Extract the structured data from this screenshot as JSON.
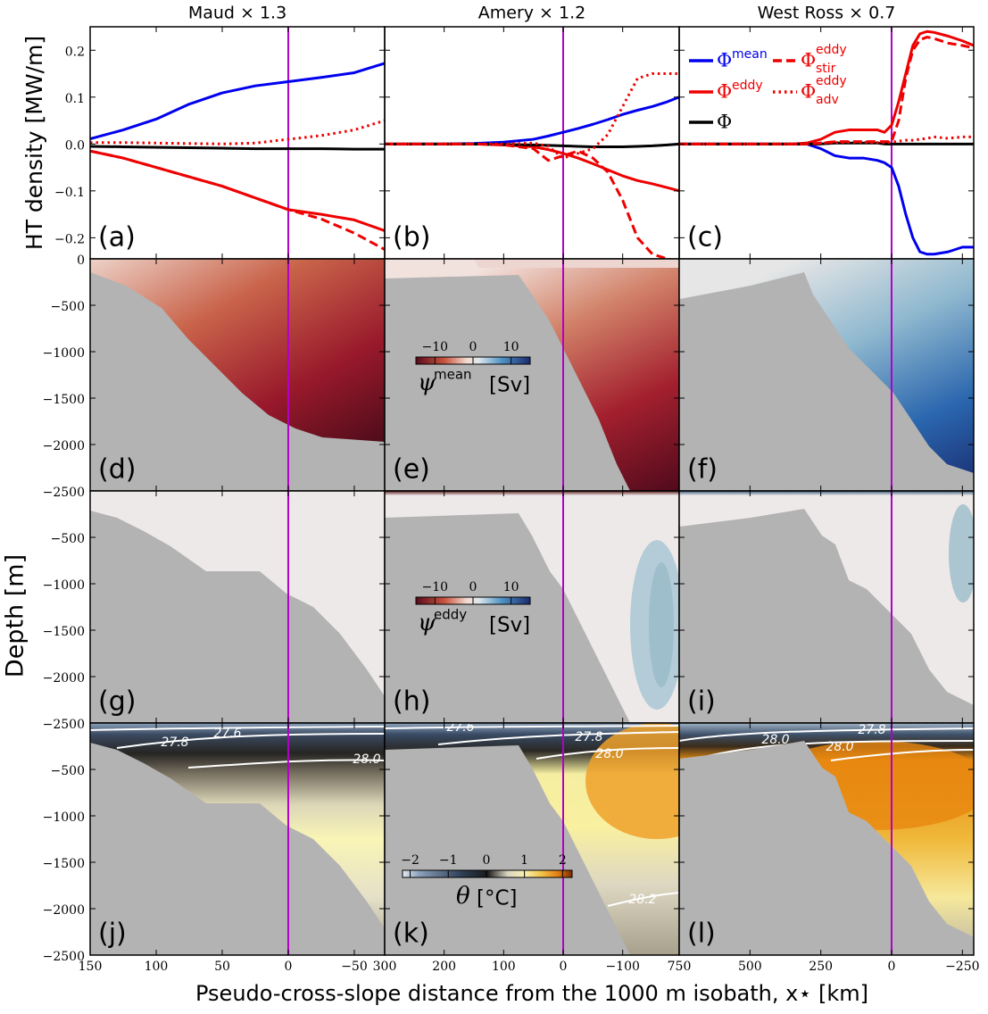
{
  "ylabel_top": "HT density [MW/m]",
  "ylabel_depth": "Depth [m]",
  "xlabel": "Pseudo-cross-slope distance from the 1000 m isobath, x⋆ [km]",
  "chart_data": [
    {
      "type": "line",
      "title": "Maud × 1.3",
      "label": "(a)",
      "xlim": [
        150,
        -73
      ],
      "ylim": [
        -0.245,
        0.25
      ],
      "xticks": [
        150,
        100,
        50,
        0,
        -50
      ],
      "yticks": [
        {
          "value": -0.2,
          "label": "−0.2"
        },
        {
          "value": -0.1,
          "label": "−0.1"
        },
        {
          "value": 0,
          "label": "0.0"
        },
        0.1,
        0.2
      ],
      "reference_x": 0,
      "reference_color": "#b300c8",
      "x": [
        150,
        125,
        100,
        75,
        50,
        25,
        0,
        -25,
        -50,
        -73
      ],
      "series": [
        {
          "color": "#0000ee",
          "style": "solid",
          "values": [
            0.011,
            0.03,
            0.053,
            0.085,
            0.109,
            0.124,
            0.133,
            0.142,
            0.152,
            0.172
          ]
        },
        {
          "color": "#ee0000",
          "style": "solid",
          "values": [
            -0.015,
            -0.03,
            -0.05,
            -0.07,
            -0.09,
            -0.115,
            -0.14,
            -0.15,
            -0.162,
            -0.185
          ]
        },
        {
          "color": "#000000",
          "style": "solid",
          "values": [
            -0.005,
            -0.006,
            -0.007,
            -0.008,
            -0.009,
            -0.01,
            -0.01,
            -0.01,
            -0.011,
            -0.011
          ]
        },
        {
          "color": "#ee0000",
          "style": "dashed",
          "values": [
            -0.015,
            -0.03,
            -0.05,
            -0.07,
            -0.09,
            -0.115,
            -0.14,
            -0.16,
            -0.19,
            -0.225
          ]
        },
        {
          "color": "#ee0000",
          "style": "dotted",
          "values": [
            0.003,
            0.003,
            0.002,
            0.001,
            0.0,
            0.002,
            0.01,
            0.018,
            0.03,
            0.05
          ]
        }
      ]
    },
    {
      "type": "line",
      "title": "Amery × 1.2",
      "label": "(b)",
      "xlim": [
        300,
        -195
      ],
      "ylim": [
        -0.245,
        0.25
      ],
      "xticks": [
        300,
        200,
        100,
        0,
        -100
      ],
      "yticks": [
        -0.2,
        -0.1,
        0,
        0.1,
        0.2
      ],
      "reference_x": 0,
      "reference_color": "#b300c8",
      "x": [
        300,
        250,
        200,
        150,
        100,
        50,
        25,
        0,
        -25,
        -50,
        -75,
        -100,
        -125,
        -150,
        -175,
        -195
      ],
      "series": [
        {
          "color": "#0000ee",
          "style": "solid",
          "values": [
            0,
            0,
            0,
            0.001,
            0.004,
            0.01,
            0.017,
            0.025,
            0.033,
            0.042,
            0.052,
            0.063,
            0.072,
            0.08,
            0.09,
            0.1
          ]
        },
        {
          "color": "#ee0000",
          "style": "solid",
          "values": [
            0,
            0,
            0,
            0,
            -0.002,
            -0.006,
            -0.012,
            -0.02,
            -0.03,
            -0.042,
            -0.055,
            -0.068,
            -0.078,
            -0.085,
            -0.093,
            -0.1
          ]
        },
        {
          "color": "#000000",
          "style": "solid",
          "values": [
            0,
            0,
            0,
            0,
            -0.001,
            -0.002,
            -0.003,
            -0.004,
            -0.005,
            -0.006,
            -0.006,
            -0.006,
            -0.005,
            -0.004,
            -0.002,
            0
          ]
        },
        {
          "color": "#ee0000",
          "style": "dashed",
          "values": [
            0,
            0,
            0,
            0,
            -0.002,
            -0.01,
            -0.035,
            -0.025,
            -0.015,
            -0.03,
            -0.06,
            -0.12,
            -0.2,
            -0.235,
            -0.245,
            -0.25
          ]
        },
        {
          "color": "#ee0000",
          "style": "dotted",
          "values": [
            0,
            0,
            0,
            0,
            0,
            0.002,
            -0.005,
            -0.03,
            -0.02,
            -0.01,
            0.02,
            0.08,
            0.14,
            0.15,
            0.15,
            0.15
          ]
        }
      ]
    },
    {
      "type": "line",
      "title": "West Ross × 0.7",
      "label": "(c)",
      "xlim": [
        750,
        -290
      ],
      "ylim": [
        -0.245,
        0.25
      ],
      "xticks": [
        750,
        500,
        250,
        0,
        -250
      ],
      "yticks": [
        -0.2,
        -0.1,
        0,
        0.1,
        0.2
      ],
      "reference_x": 0,
      "reference_color": "#b300c8",
      "x": [
        750,
        600,
        500,
        400,
        350,
        300,
        250,
        200,
        150,
        100,
        50,
        25,
        0,
        -25,
        -50,
        -75,
        -100,
        -125,
        -150,
        -200,
        -250,
        -290
      ],
      "series": [
        {
          "name": "Φ",
          "sup": "mean",
          "color": "#0000ee",
          "style": "solid",
          "values": [
            0,
            0,
            0,
            0,
            0,
            0,
            -0.01,
            -0.025,
            -0.03,
            -0.03,
            -0.035,
            -0.04,
            -0.05,
            -0.09,
            -0.15,
            -0.2,
            -0.23,
            -0.235,
            -0.235,
            -0.23,
            -0.22,
            -0.22
          ]
        },
        {
          "name": "Φ",
          "sup": "eddy",
          "color": "#ee0000",
          "style": "solid",
          "values": [
            0,
            0,
            0,
            0,
            0,
            0.002,
            0.01,
            0.025,
            0.03,
            0.03,
            0.03,
            0.025,
            0.04,
            0.09,
            0.15,
            0.21,
            0.235,
            0.24,
            0.238,
            0.23,
            0.22,
            0.21
          ]
        },
        {
          "name": "Φ",
          "color": "#000000",
          "style": "solid",
          "values": [
            0,
            0,
            0,
            0,
            0,
            0,
            0,
            0.002,
            0.002,
            0.002,
            0.002,
            0,
            0,
            0,
            0,
            0,
            0,
            0,
            0,
            0,
            0,
            0
          ]
        },
        {
          "name": "Φ",
          "sup": "eddy",
          "sub": "stir",
          "color": "#ee0000",
          "style": "dashed",
          "values": [
            0,
            0,
            0,
            0,
            0,
            0,
            0.002,
            0.005,
            0.005,
            0.005,
            0.005,
            0.005,
            0.005,
            0.05,
            0.14,
            0.2,
            0.222,
            0.228,
            0.225,
            0.215,
            0.21,
            0.205
          ]
        },
        {
          "name": "Φ",
          "sup": "eddy",
          "sub": "adv",
          "color": "#ee0000",
          "style": "dotted",
          "values": [
            0,
            0,
            0,
            0,
            0,
            0,
            0.002,
            0.003,
            0.004,
            0.004,
            0.003,
            0.003,
            0.004,
            0.006,
            0.008,
            0.008,
            0.01,
            0.012,
            0.015,
            0.012,
            0.015,
            0.015
          ]
        }
      ]
    },
    {
      "type": "contour",
      "label": "(d)",
      "xlim": [
        150,
        -73
      ],
      "ylim": [
        -2500,
        0
      ],
      "xticks": [
        150,
        100,
        50,
        0,
        -50
      ],
      "yticks": [
        {
          "value": -2500,
          "label": "−2500"
        },
        {
          "value": -2000,
          "label": "−2000"
        },
        {
          "value": -1500,
          "label": "−1500"
        },
        {
          "value": -1000,
          "label": "−1000"
        },
        {
          "value": -500,
          "label": "−500"
        },
        0
      ],
      "reference_x": 0,
      "reference_color": "#b300c8"
    },
    {
      "type": "contour",
      "label": "(e)",
      "xlim": [
        300,
        -195
      ],
      "ylim": [
        -2500,
        0
      ],
      "xticks": [
        300,
        200,
        100,
        0,
        -100
      ],
      "yticks": [
        -2500,
        -2000,
        -1500,
        -1000,
        -500,
        0
      ],
      "reference_x": 0,
      "reference_color": "#b300c8",
      "colorbar": {
        "symbol": "ψ",
        "sup": "mean",
        "unit": "[Sv]",
        "lim": [
          -15,
          15
        ],
        "ticks": [
          {
            "value": -10,
            "label": "−10"
          },
          0,
          10
        ]
      }
    },
    {
      "type": "contour",
      "label": "(f)",
      "xlim": [
        750,
        -290
      ],
      "ylim": [
        -2500,
        0
      ],
      "xticks": [
        750,
        500,
        250,
        0,
        -250
      ],
      "yticks": [
        -2500,
        -2000,
        -1500,
        -1000,
        -500,
        0
      ],
      "reference_x": 0,
      "reference_color": "#b300c8"
    },
    {
      "type": "contour",
      "label": "(g)",
      "xlim": [
        150,
        -73
      ],
      "ylim": [
        -2500,
        0
      ],
      "xticks": [
        150,
        100,
        50,
        0,
        -50
      ],
      "yticks": [
        {
          "value": -2500,
          "label": "−2500"
        },
        {
          "value": -2000,
          "label": "−2000"
        },
        {
          "value": -1500,
          "label": "−1500"
        },
        {
          "value": -1000,
          "label": "−1000"
        },
        {
          "value": -500,
          "label": "−500"
        }
      ],
      "reference_x": 0,
      "reference_color": "#b300c8"
    },
    {
      "type": "contour",
      "label": "(h)",
      "xlim": [
        300,
        -195
      ],
      "ylim": [
        -2500,
        0
      ],
      "xticks": [
        300,
        200,
        100,
        0,
        -100
      ],
      "yticks": [
        -2500,
        -2000,
        -1500,
        -1000,
        -500,
        0
      ],
      "reference_x": 0,
      "reference_color": "#b300c8",
      "colorbar": {
        "symbol": "ψ",
        "sup": "eddy",
        "unit": "[Sv]",
        "lim": [
          -15,
          15
        ],
        "ticks": [
          {
            "value": -10,
            "label": "−10"
          },
          0,
          10
        ]
      }
    },
    {
      "type": "contour",
      "label": "(i)",
      "xlim": [
        750,
        -290
      ],
      "ylim": [
        -2500,
        0
      ],
      "xticks": [
        750,
        500,
        250,
        0,
        -250
      ],
      "yticks": [
        -2500,
        -2000,
        -1500,
        -1000,
        -500,
        0
      ],
      "reference_x": 0,
      "reference_color": "#b300c8"
    },
    {
      "type": "contour",
      "label": "(j)",
      "xlim": [
        150,
        -73
      ],
      "ylim": [
        -2500,
        0
      ],
      "xticks": [
        150,
        100,
        50,
        0,
        {
          "value": -50,
          "label": "−50"
        }
      ],
      "yticks": [
        {
          "value": -2500,
          "label": "−2500"
        },
        {
          "value": -2000,
          "label": "−2000"
        },
        {
          "value": -1500,
          "label": "−1500"
        },
        {
          "value": -1000,
          "label": "−1000"
        },
        {
          "value": -500,
          "label": "−500"
        }
      ],
      "reference_x": 0,
      "reference_color": "#b300c8",
      "contour_labels": [
        "27.8",
        "27.6",
        "28.0"
      ]
    },
    {
      "type": "contour",
      "label": "(k)",
      "xlim": [
        300,
        -195
      ],
      "ylim": [
        -2500,
        0
      ],
      "xticks": [
        300,
        200,
        100,
        0,
        {
          "value": -100,
          "label": "−100"
        }
      ],
      "yticks": [
        -2500,
        -2000,
        -1500,
        -1000,
        -500,
        0
      ],
      "reference_x": 0,
      "reference_color": "#b300c8",
      "contour_labels": [
        "27.6",
        "27.8",
        "28.0",
        "28.2"
      ],
      "colorbar": {
        "symbol": "θ",
        "unit": "[°C]",
        "lim": [
          -2.2,
          2.25
        ],
        "ticks": [
          {
            "value": -2,
            "label": "−2"
          },
          {
            "value": -1,
            "label": "−1"
          },
          0,
          1,
          2
        ]
      }
    },
    {
      "type": "contour",
      "label": "(l)",
      "xlim": [
        750,
        -290
      ],
      "ylim": [
        -2500,
        0
      ],
      "xticks": [
        750,
        500,
        250,
        0,
        {
          "value": -250,
          "label": "−250"
        }
      ],
      "yticks": [
        -2500,
        -2000,
        -1500,
        -1000,
        -500,
        0
      ],
      "reference_x": 0,
      "reference_color": "#b300c8",
      "contour_labels": [
        "28.0",
        "27.8",
        "28.0"
      ]
    }
  ]
}
